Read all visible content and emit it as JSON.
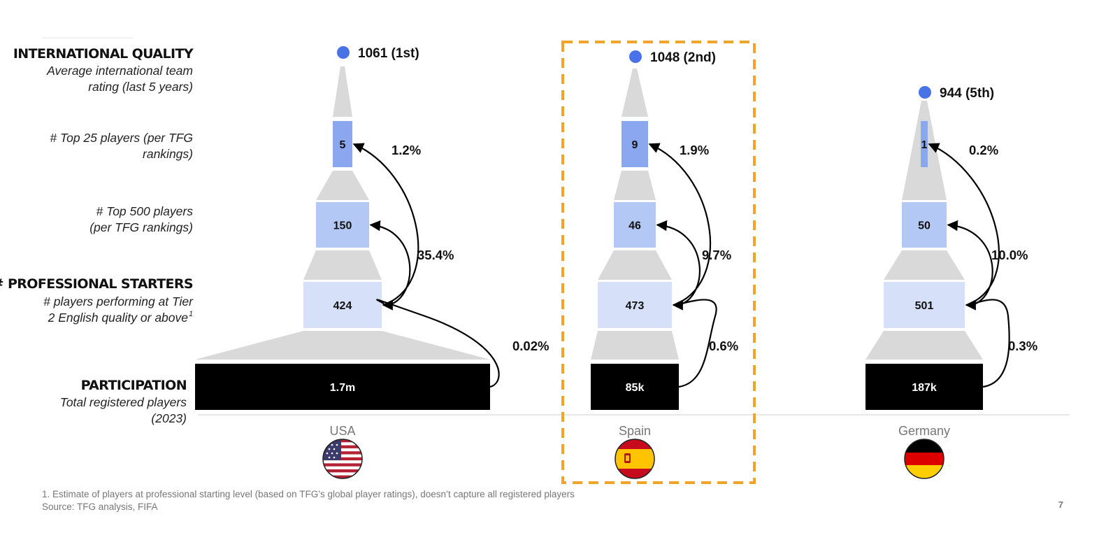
{
  "row_labels": {
    "international": {
      "heading": "INTERNATIONAL QUALITY",
      "sub": [
        "Average international team",
        "rating (last 5 years)"
      ]
    },
    "top25": {
      "sub": [
        "# Top 25 players (per TFG",
        "rankings)"
      ]
    },
    "top500": {
      "sub": [
        "# Top 500 players",
        "(per TFG rankings)"
      ]
    },
    "starters": {
      "heading": "~# PROFESSIONAL STARTERS",
      "sub": [
        "# players performing at Tier",
        "2 English quality or above"
      ],
      "footnote_mark": "1"
    },
    "participation": {
      "heading": "PARTICIPATION",
      "sub": [
        "Total registered players",
        "(2023)"
      ]
    }
  },
  "chart_data": {
    "type": "funnel",
    "categories": [
      "USA",
      "Spain",
      "Germany"
    ],
    "highlighted": "Spain",
    "levels": [
      "Participation",
      "Professional starters",
      "Top 500 players",
      "Top 25 players",
      "International rating"
    ],
    "series": [
      {
        "country": "USA",
        "participation": 1700000,
        "participation_label": "1.7m",
        "starters": 424,
        "starters_label": "424",
        "top500": 150,
        "top500_label": "150",
        "top25": 5,
        "top25_label": "5",
        "rating": 1061,
        "rating_label": "1061 (1st)",
        "conversions": {
          "participation_to_starters": "0.02%",
          "starters_to_top500": "35.4%",
          "starters_to_top25": "1.2%"
        }
      },
      {
        "country": "Spain",
        "participation": 85000,
        "participation_label": "85k",
        "starters": 473,
        "starters_label": "473",
        "top500": 46,
        "top500_label": "46",
        "top25": 9,
        "top25_label": "9",
        "rating": 1048,
        "rating_label": "1048 (2nd)",
        "conversions": {
          "participation_to_starters": "0.6%",
          "starters_to_top500": "9.7%",
          "starters_to_top25": "1.9%"
        }
      },
      {
        "country": "Germany",
        "participation": 187000,
        "participation_label": "187k",
        "starters": 501,
        "starters_label": "501",
        "top500": 50,
        "top500_label": "50",
        "top25": 1,
        "top25_label": "1",
        "rating": 944,
        "rating_label": "944 (5th)",
        "conversions": {
          "participation_to_starters": "0.3%",
          "starters_to_top500": "10.0%",
          "starters_to_top25": "0.2%"
        }
      }
    ]
  },
  "colors": {
    "participation": "#000000",
    "starters": "#d6e0f9",
    "top500": "#b4c8f6",
    "top25": "#8aa7ef",
    "rating_dot": "#4a72e8",
    "connector": "#d9d9d9",
    "highlight_border": "#f0a52a"
  },
  "flags": [
    {
      "country": "USA",
      "icon": "us-flag-icon"
    },
    {
      "country": "Spain",
      "icon": "spain-flag-icon"
    },
    {
      "country": "Germany",
      "icon": "germany-flag-icon"
    }
  ],
  "footer": {
    "footnote": "1. Estimate of players at professional starting level (based on TFG’s global player ratings), doesn’t capture all registered players",
    "source": "Source: TFG analysis, FIFA",
    "page_number": "7"
  }
}
